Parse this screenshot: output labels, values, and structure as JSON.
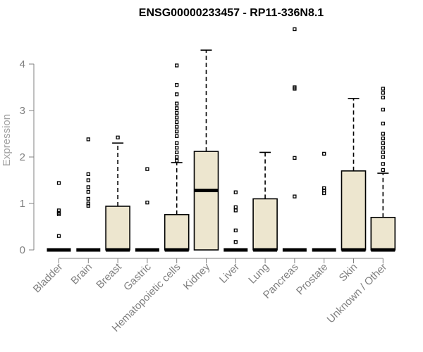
{
  "chart_data": {
    "type": "boxplot",
    "title": "ENSG00000233457 - RP11-336N8.1",
    "xlabel": "",
    "ylabel": "Expression",
    "ylim": [
      0,
      4.6
    ],
    "yticks": [
      0,
      1,
      2,
      3,
      4
    ],
    "categories": [
      "Bladder",
      "Brain",
      "Breast",
      "Gastric",
      "Hematopoietic cells",
      "Kidney",
      "Liver",
      "Lung",
      "Pancreas",
      "Prostate",
      "Skin",
      "Unknown / Other"
    ],
    "boxes": [
      {
        "category": "Bladder",
        "q1": 0,
        "median": 0,
        "q3": 0,
        "whisker_low": 0,
        "whisker_high": 0,
        "outliers": [
          0.3,
          0.77,
          0.8,
          0.85,
          1.44
        ]
      },
      {
        "category": "Brain",
        "q1": 0,
        "median": 0,
        "q3": 0,
        "whisker_low": 0,
        "whisker_high": 0,
        "outliers": [
          0.95,
          1.0,
          1.1,
          1.25,
          1.35,
          1.5,
          1.63,
          2.38
        ]
      },
      {
        "category": "Breast",
        "q1": 0,
        "median": 0,
        "q3": 0.94,
        "whisker_low": 0,
        "whisker_high": 2.3,
        "outliers": [
          2.42
        ]
      },
      {
        "category": "Gastric",
        "q1": 0,
        "median": 0,
        "q3": 0,
        "whisker_low": 0,
        "whisker_high": 0,
        "outliers": [
          1.02,
          1.74
        ]
      },
      {
        "category": "Hematopoietic cells",
        "q1": 0,
        "median": 0,
        "q3": 0.76,
        "whisker_low": 0,
        "whisker_high": 1.88,
        "outliers": [
          1.92,
          2.0,
          2.1,
          2.2,
          2.3,
          2.45,
          2.55,
          2.65,
          2.75,
          2.85,
          2.95,
          3.05,
          3.15,
          3.35,
          3.55,
          3.97
        ]
      },
      {
        "category": "Kidney",
        "q1": 0,
        "median": 1.28,
        "q3": 2.12,
        "whisker_low": 0,
        "whisker_high": 4.3,
        "outliers": []
      },
      {
        "category": "Liver",
        "q1": 0,
        "median": 0,
        "q3": 0,
        "whisker_low": 0,
        "whisker_high": 0,
        "outliers": [
          0.17,
          0.42,
          0.85,
          0.92,
          1.24
        ]
      },
      {
        "category": "Lung",
        "q1": 0,
        "median": 0,
        "q3": 1.1,
        "whisker_low": 0,
        "whisker_high": 2.1,
        "outliers": []
      },
      {
        "category": "Pancreas",
        "q1": 0,
        "median": 0,
        "q3": 0,
        "whisker_low": 0,
        "whisker_high": 0,
        "outliers": [
          1.15,
          1.98,
          3.47,
          3.5,
          4.75
        ]
      },
      {
        "category": "Prostate",
        "q1": 0,
        "median": 0,
        "q3": 0,
        "whisker_low": 0,
        "whisker_high": 0,
        "outliers": [
          1.22,
          1.28,
          1.33,
          2.07
        ]
      },
      {
        "category": "Skin",
        "q1": 0,
        "median": 0,
        "q3": 1.7,
        "whisker_low": 0,
        "whisker_high": 3.26,
        "outliers": []
      },
      {
        "category": "Unknown / Other",
        "q1": 0,
        "median": 0,
        "q3": 0.7,
        "whisker_low": 0,
        "whisker_high": 1.65,
        "outliers": [
          1.72,
          1.85,
          2.0,
          2.1,
          2.2,
          2.3,
          2.4,
          2.5,
          2.72,
          3.02,
          3.28,
          3.38,
          3.47
        ]
      }
    ],
    "colors": {
      "box_fill": "#ede6cf",
      "box_stroke": "#000000",
      "axis": "#808080"
    },
    "grid": false,
    "legend": "none"
  }
}
